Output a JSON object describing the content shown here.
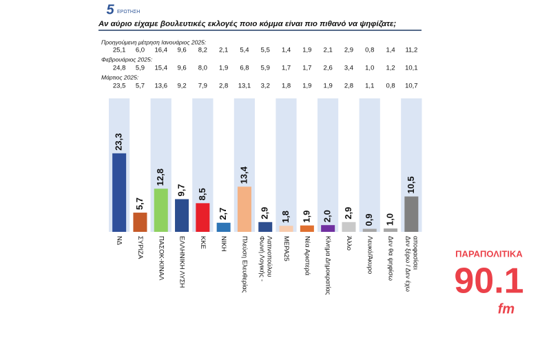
{
  "chart_data": {
    "type": "bar",
    "question_number": "5",
    "question_word": "ΕΡΩΤΗΣΗ",
    "title": "Αν αύριο είχαμε βουλευτικές εκλογές ποιο κόμμα είναι πιο πιθανό να ψηφίζατε;",
    "previous_measurements": [
      {
        "label": "Προηγούμενη μέτρηση Ιανουάριος 2025:",
        "values": [
          "25,1",
          "6,0",
          "16,4",
          "9,6",
          "8,2",
          "2,1",
          "5,4",
          "5,5",
          "1,4",
          "1,9",
          "2,1",
          "2,9",
          "0,8",
          "1,4",
          "11,2"
        ]
      },
      {
        "label": "Φεβρουάριος 2025:",
        "values": [
          "24,8",
          "5,9",
          "15,4",
          "9,6",
          "8,0",
          "1,9",
          "6,8",
          "5,9",
          "1,7",
          "1,7",
          "2,6",
          "3,4",
          "1,0",
          "1,2",
          "10,1"
        ]
      },
      {
        "label": "Μάρτιος 2025:",
        "values": [
          "23,5",
          "5,7",
          "13,6",
          "9,2",
          "7,9",
          "2,8",
          "13,1",
          "3,2",
          "1,8",
          "1,9",
          "1,9",
          "2,8",
          "1,1",
          "0,8",
          "10,7"
        ]
      }
    ],
    "categories": [
      "ΝΔ",
      "ΣΥΡΙΖΑ",
      "ΠΑΣΟΚ-ΚΙΝΑΛ",
      "ΕΛΛΗΝΙΚΗ ΛΥΣΗ",
      "ΚΚΕ",
      "ΝΙΚΗ",
      "Πλεύση Ελευθερίας",
      "Φωνή Λογικής - Λατινοπούλου",
      "ΜΕΡΑ25",
      "Νέα Αριστερά",
      "Κίνημα Δημοκρατίας",
      "Άλλο",
      "Λευκό/Άκυρο",
      "Δεν θα ψηφίσω",
      "Δεν ξέρω / Δεν έχω αποφασίσει"
    ],
    "values": [
      23.3,
      5.7,
      12.8,
      9.7,
      8.5,
      2.7,
      13.4,
      2.9,
      1.8,
      1.9,
      2.0,
      2.9,
      0.9,
      1.0,
      10.5
    ],
    "value_labels": [
      "23,3",
      "5,7",
      "12,8",
      "9,7",
      "8,5",
      "2,7",
      "13,4",
      "2,9",
      "1,8",
      "1,9",
      "2,0",
      "2,9",
      "0,9",
      "1,0",
      "10,5"
    ],
    "colors": [
      "#2e4f9a",
      "#c55a28",
      "#8fd160",
      "#2b4d8f",
      "#e8202a",
      "#2e75b6",
      "#f4b183",
      "#2f4f8f",
      "#f8cbad",
      "#e07030",
      "#7030a0",
      "#c9c9c9",
      "#a6a6a6",
      "#a6a6a6",
      "#808080"
    ],
    "watermark": {
      "brand": "ΠΑΡΑΠΟΛΙΤΙΚΑ",
      "frequency": "90.1",
      "band": "fm"
    }
  }
}
